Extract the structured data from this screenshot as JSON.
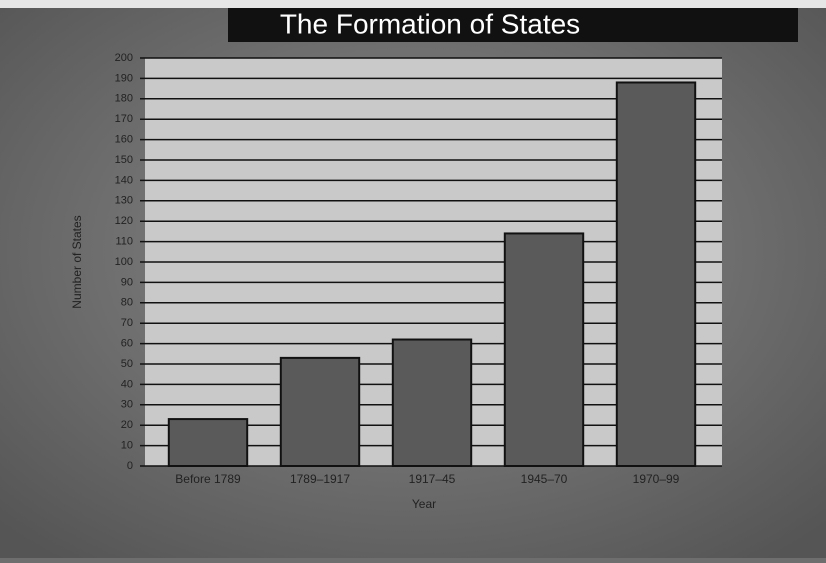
{
  "chart_data": {
    "type": "bar",
    "title": "The Formation of States",
    "x_label": "Year",
    "y_label": "Number of States",
    "categories": [
      "Before 1789",
      "1789–1917",
      "1917–45",
      "1945–70",
      "1970–99"
    ],
    "values": [
      23,
      53,
      62,
      114,
      188
    ],
    "color": "#5a5a5a",
    "ylim": [
      0,
      200
    ],
    "yticks": [
      0,
      10,
      20,
      30,
      40,
      50,
      60,
      70,
      80,
      90,
      100,
      110,
      120,
      130,
      140,
      150,
      160,
      170,
      180,
      190,
      200
    ],
    "grid": true
  }
}
